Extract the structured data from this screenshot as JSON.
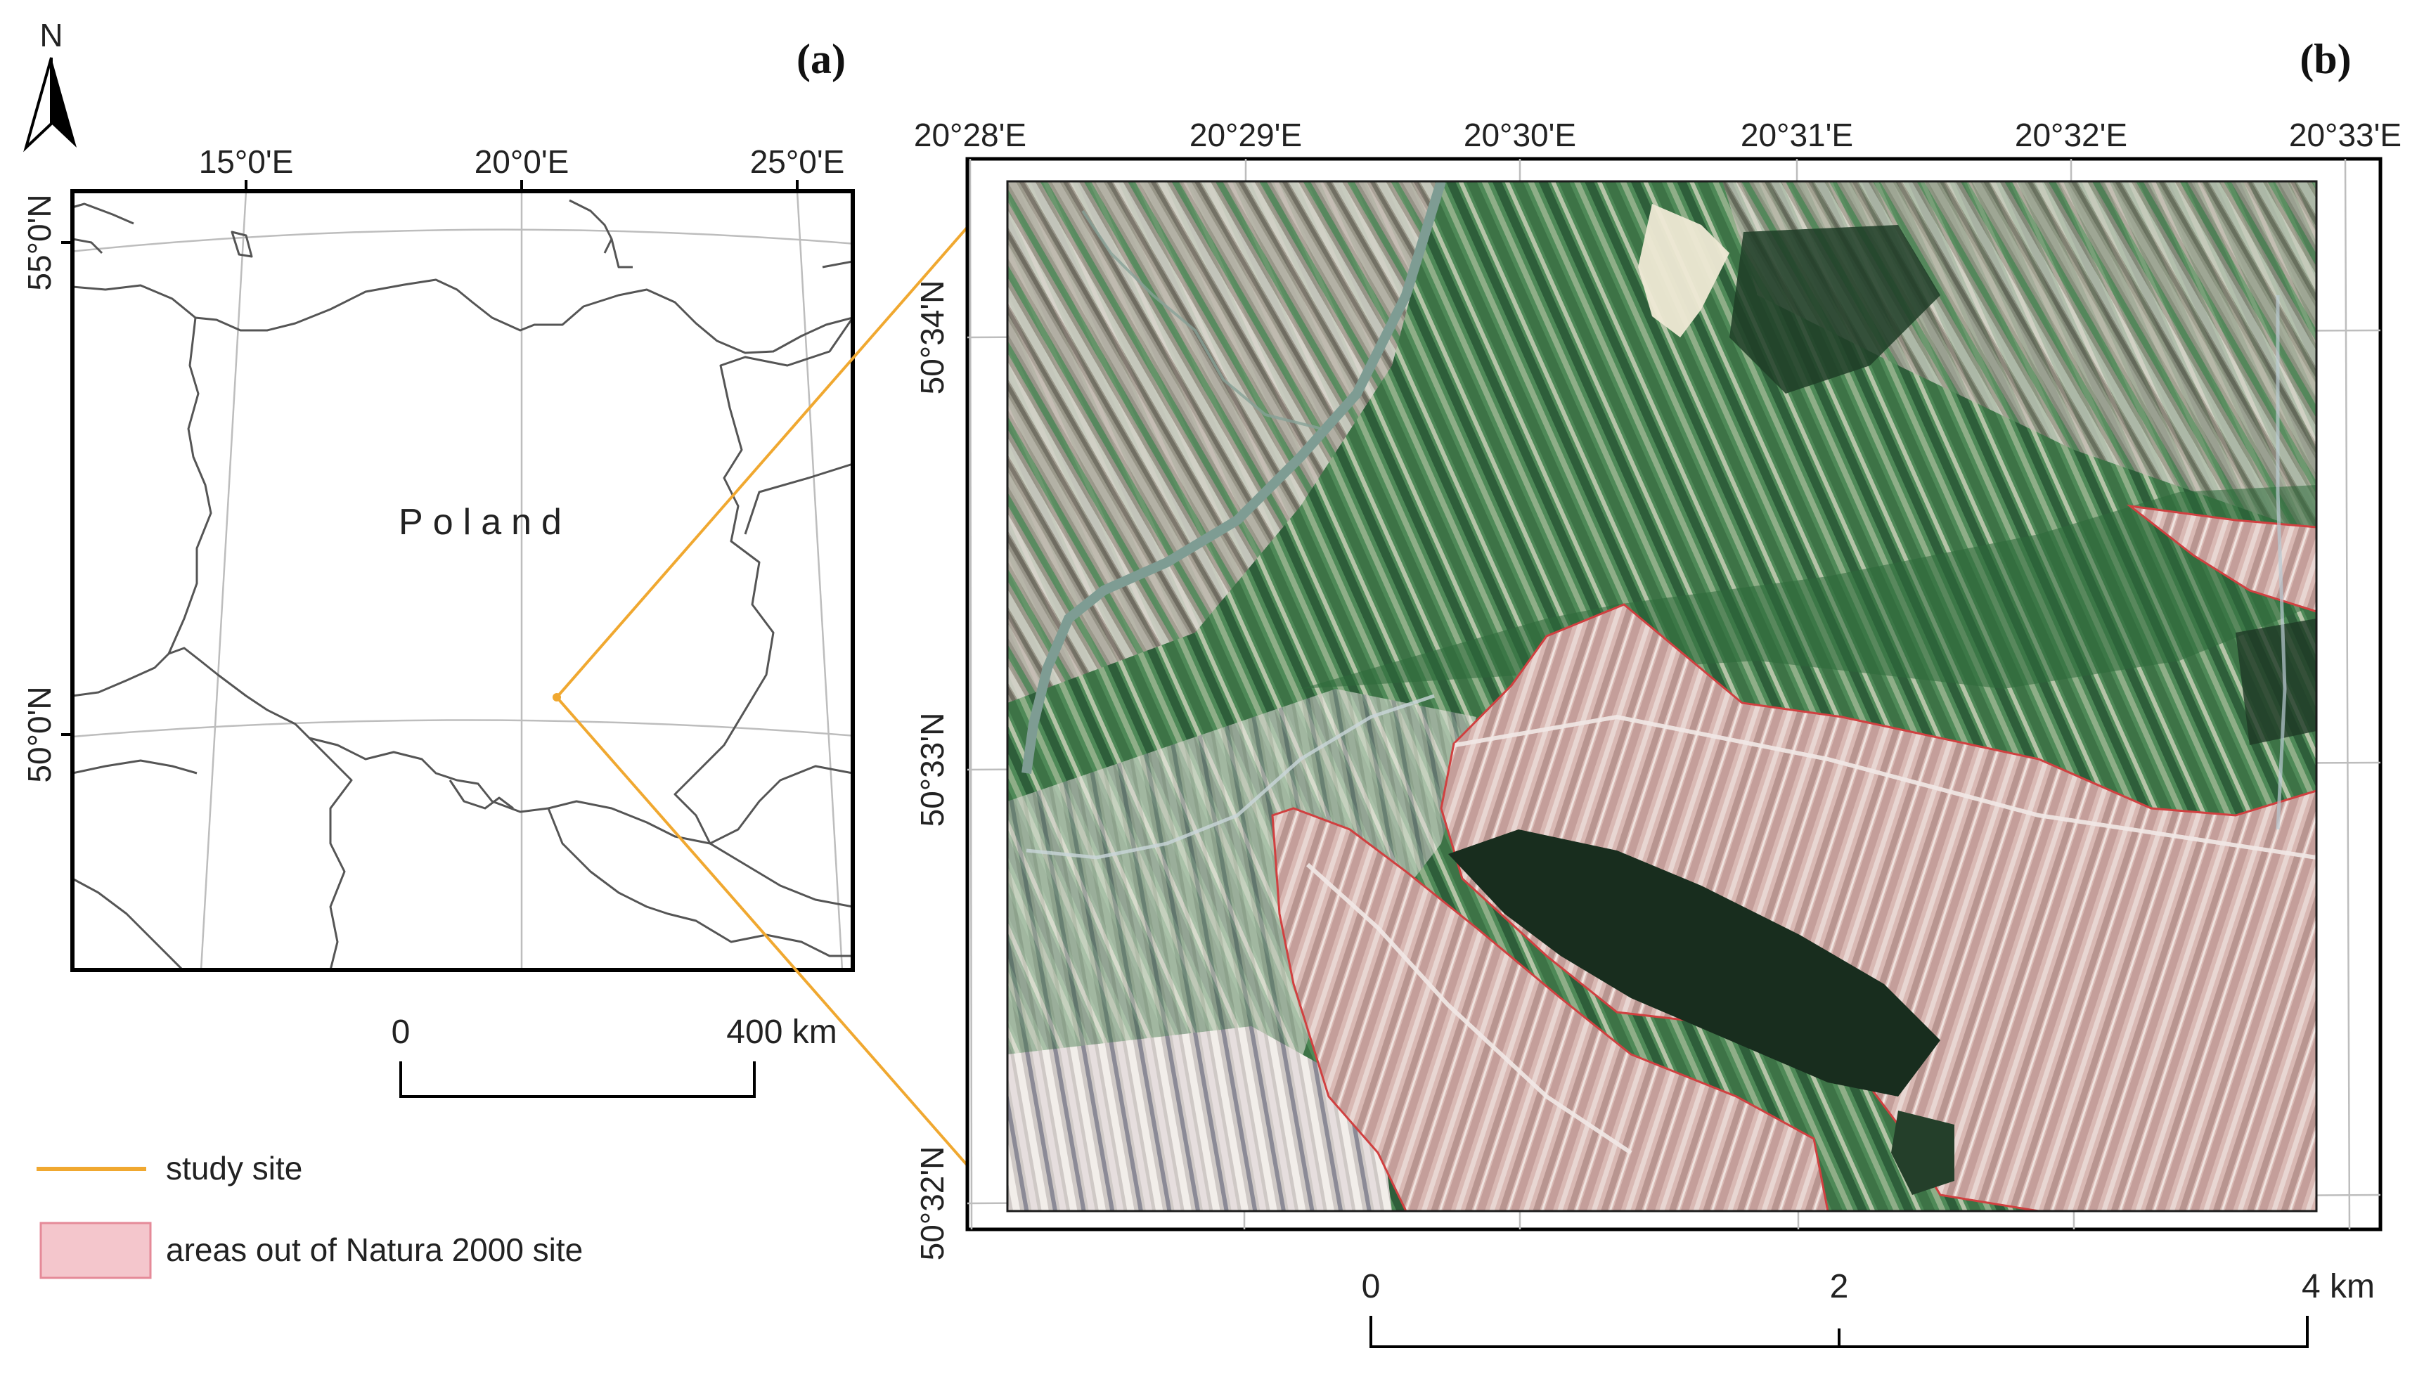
{
  "panel_a": {
    "label": "(a)",
    "north_letter": "N",
    "lon_labels": [
      "15°0'E",
      "20°0'E",
      "25°0'E"
    ],
    "lat_labels": [
      "55°0'N",
      "50°0'N"
    ],
    "country_label": "Poland",
    "scale": {
      "start": "0",
      "end": "400 km"
    }
  },
  "panel_b": {
    "label": "(b)",
    "lon_labels": [
      "20°28'E",
      "20°29'E",
      "20°30'E",
      "20°31'E",
      "20°32'E",
      "20°33'E"
    ],
    "lat_labels": [
      "50°34'N",
      "50°33'N",
      "50°32'N"
    ],
    "scale": {
      "start": "0",
      "mid": "2",
      "end": "4 km"
    }
  },
  "legend": {
    "items": [
      {
        "label": "study site",
        "color": "#f0a830"
      },
      {
        "label": "areas out of Natura 2000 site",
        "color": "#f4c6cc"
      }
    ]
  },
  "colors": {
    "study_site": "#f0a830",
    "natura_outline": "#d04040",
    "frame": "#000000",
    "border_lines": "#555555",
    "graticule": "#bbbbbb"
  }
}
